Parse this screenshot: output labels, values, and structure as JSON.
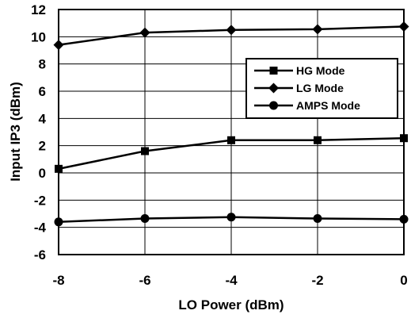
{
  "chart_data": {
    "type": "line",
    "xlabel": "LO Power (dBm)",
    "ylabel": "Input IP3 (dBm)",
    "xlim": [
      -8,
      0
    ],
    "ylim": [
      -6,
      12
    ],
    "x_ticks": [
      -8,
      -6,
      -4,
      -2,
      0
    ],
    "y_ticks": [
      -6,
      -4,
      -2,
      0,
      2,
      4,
      6,
      8,
      10,
      12
    ],
    "grid": true,
    "legend_position": "right",
    "x": [
      -8,
      -6,
      -4,
      -2,
      0
    ],
    "series": [
      {
        "name": "HG Mode",
        "marker": "square",
        "values": [
          0.3,
          1.6,
          2.4,
          2.4,
          2.55
        ]
      },
      {
        "name": "LG Mode",
        "marker": "diamond",
        "values": [
          9.4,
          10.3,
          10.5,
          10.55,
          10.75
        ]
      },
      {
        "name": "AMPS Mode",
        "marker": "circle",
        "values": [
          -3.6,
          -3.35,
          -3.25,
          -3.35,
          -3.4
        ]
      }
    ],
    "line_color": "#000000"
  }
}
